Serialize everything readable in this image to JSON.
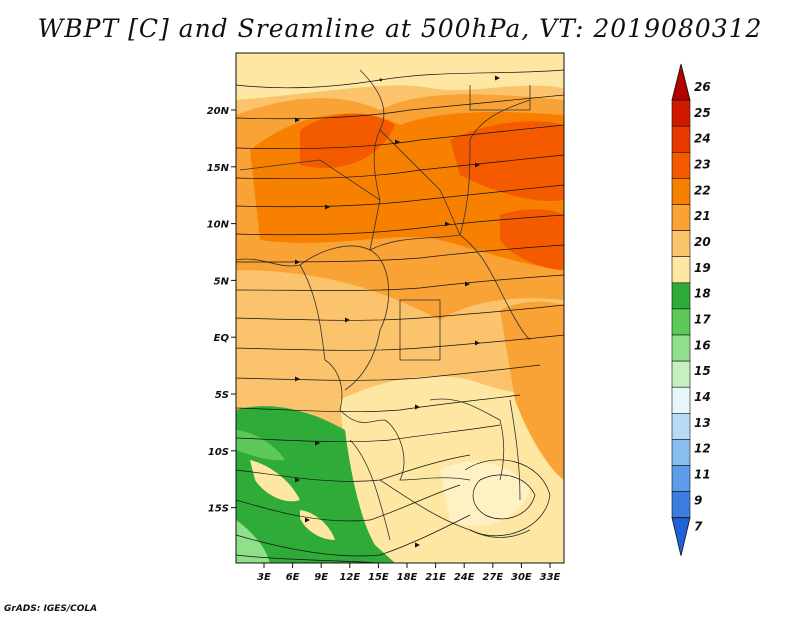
{
  "title": "WBPT [C] and Sreamline at 500hPa, VT: 2019080312",
  "footer": "GrADS: IGES/COLA",
  "map": {
    "lat_labels": [
      "20N",
      "15N",
      "10N",
      "5N",
      "EQ",
      "5S",
      "10S",
      "15S"
    ],
    "lon_labels": [
      "3E",
      "6E",
      "9E",
      "12E",
      "15E",
      "18E",
      "21E",
      "24E",
      "27E",
      "30E",
      "33E"
    ]
  },
  "colorbar": {
    "labels": [
      "26",
      "25",
      "24",
      "23",
      "22",
      "21",
      "20",
      "19",
      "18",
      "17",
      "16",
      "15",
      "14",
      "13",
      "12",
      "11",
      "9",
      "7"
    ],
    "colors": [
      "#b30000",
      "#d01a00",
      "#e83a00",
      "#f45a00",
      "#f88000",
      "#f9a235",
      "#fbc36b",
      "#fde7a3",
      "#2eab38",
      "#5cc959",
      "#8fdf8b",
      "#c5f0c2",
      "#e6f6fb",
      "#b7daf5",
      "#87bdef",
      "#5c9ce8",
      "#3c7edf",
      "#1f62d6"
    ]
  }
}
